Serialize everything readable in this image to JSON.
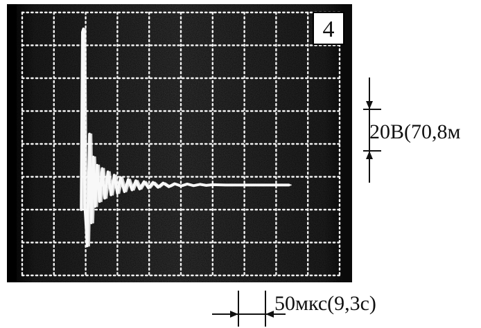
{
  "chart_data": {
    "type": "line",
    "title": "",
    "panel_label": "4",
    "xlabel": "",
    "ylabel": "",
    "grid": true,
    "grid_divisions": {
      "x": 10,
      "y": 8
    },
    "vertical_scale_label": "20В(70,8м",
    "horizontal_scale_label": "50мкс(9,3с)",
    "series": [
      {
        "description_units": "divisions",
        "x": [
          0,
          1.86,
          1.9,
          1.93,
          1.97,
          2.05,
          2.12,
          2.18,
          2.24,
          2.3,
          2.36,
          2.44,
          2.52,
          2.6,
          2.7,
          2.8,
          2.9,
          3.0,
          3.1,
          3.22,
          3.34,
          3.46,
          3.58,
          3.7,
          3.84,
          3.98,
          4.12,
          4.28,
          4.44,
          4.62,
          4.8,
          5.0,
          5.2,
          5.4,
          5.6,
          5.8,
          6.0,
          6.4,
          6.8,
          7.2,
          7.6,
          8.0,
          8.4
        ],
        "y": [
          0,
          0,
          5.4,
          5.5,
          0.2,
          -1.1,
          2.3,
          -0.4,
          1.6,
          0.1,
          1.35,
          0.25,
          1.25,
          0.35,
          1.15,
          0.45,
          1.05,
          0.5,
          0.98,
          0.55,
          0.92,
          0.6,
          0.88,
          0.63,
          0.85,
          0.66,
          0.83,
          0.68,
          0.81,
          0.7,
          0.79,
          0.72,
          0.78,
          0.73,
          0.77,
          0.74,
          0.76,
          0.75,
          0.75,
          0.75,
          0.75,
          0.75,
          0.75
        ]
      }
    ]
  }
}
